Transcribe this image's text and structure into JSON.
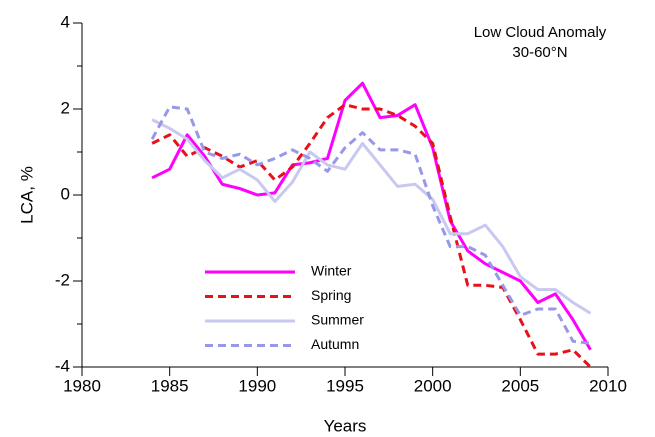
{
  "chart_data": {
    "type": "line",
    "annotation": [
      "Low Cloud Anomaly",
      "30-60°N"
    ],
    "xlabel": "Years",
    "ylabel": "LCA, %",
    "x": [
      1984,
      1985,
      1986,
      1987,
      1988,
      1989,
      1990,
      1991,
      1992,
      1993,
      1994,
      1995,
      1996,
      1997,
      1998,
      1999,
      2000,
      2001,
      2002,
      2003,
      2004,
      2005,
      2006,
      2007,
      2008,
      2009
    ],
    "series": [
      {
        "name": "Winter",
        "color": "#ff00ff",
        "dash": false,
        "values": [
          0.4,
          0.6,
          1.4,
          0.9,
          0.25,
          0.15,
          0.0,
          0.05,
          0.7,
          0.75,
          0.85,
          2.2,
          2.6,
          1.8,
          1.85,
          2.1,
          1.1,
          -0.6,
          -1.3,
          -1.6,
          -1.8,
          -2.0,
          -2.5,
          -2.3,
          -2.9,
          -3.6
        ]
      },
      {
        "name": "Spring",
        "color": "#e8101a",
        "dash": true,
        "values": [
          1.2,
          1.4,
          0.9,
          1.1,
          0.9,
          0.65,
          0.8,
          0.35,
          0.65,
          1.2,
          1.8,
          2.1,
          2.0,
          2.0,
          1.85,
          1.6,
          1.2,
          -0.5,
          -2.1,
          -2.1,
          -2.15,
          -2.9,
          -3.7,
          -3.7,
          -3.6,
          -4.0
        ]
      },
      {
        "name": "Summer",
        "color": "#c8c8f0",
        "dash": false,
        "values": [
          1.75,
          1.55,
          1.3,
          0.8,
          0.4,
          0.6,
          0.35,
          -0.15,
          0.3,
          1.0,
          0.7,
          0.6,
          1.2,
          0.7,
          0.2,
          0.25,
          -0.1,
          -0.9,
          -0.9,
          -0.7,
          -1.2,
          -1.9,
          -2.2,
          -2.2,
          -2.5,
          -2.75
        ]
      },
      {
        "name": "Autumn",
        "color": "#9898e8",
        "dash": true,
        "values": [
          1.3,
          2.05,
          2.0,
          1.0,
          0.85,
          0.95,
          0.7,
          0.85,
          1.05,
          0.85,
          0.55,
          1.1,
          1.45,
          1.05,
          1.05,
          0.95,
          -0.25,
          -1.2,
          -1.2,
          -1.4,
          -2.1,
          -2.8,
          -2.65,
          -2.65,
          -3.4,
          -3.45
        ]
      }
    ],
    "xlim": [
      1980,
      2010
    ],
    "xticks": [
      1980,
      1985,
      1990,
      1995,
      2000,
      2005,
      2010
    ],
    "ylim": [
      -4,
      4
    ],
    "yticks": [
      -4,
      -2,
      0,
      2,
      4
    ],
    "yminorticks": [
      -3,
      -1,
      1,
      3
    ],
    "grid": false,
    "legend": "lower left"
  }
}
